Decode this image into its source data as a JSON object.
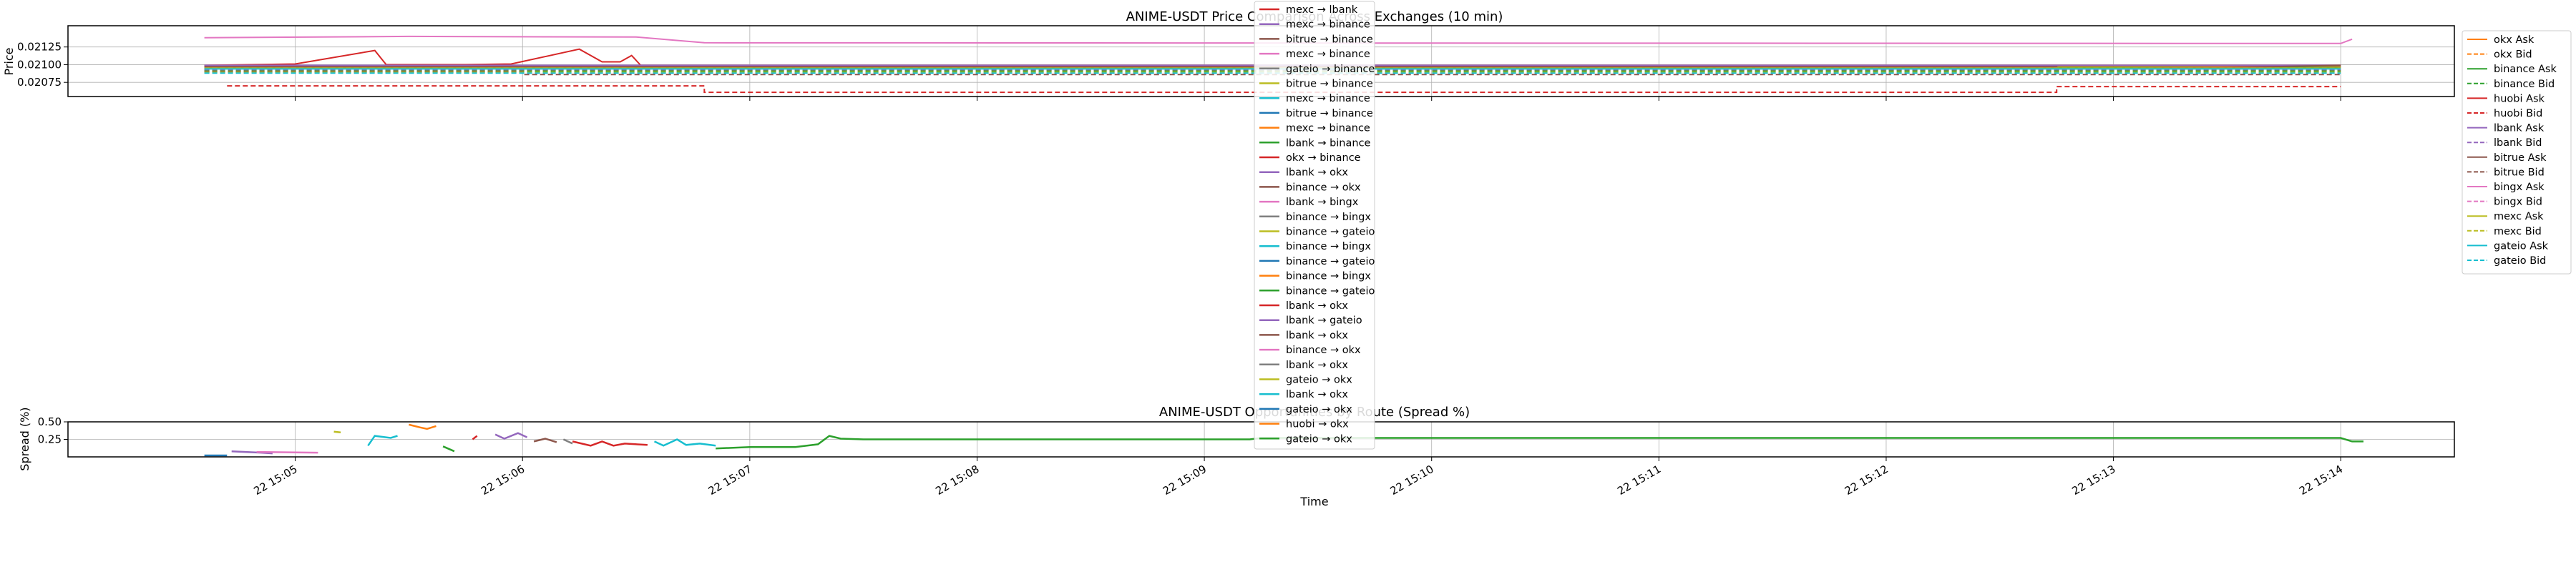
{
  "chart_data": [
    {
      "type": "line",
      "title": "ANIME-USDT Price Comparison Across Exchanges (10 min)",
      "ylabel": "Price",
      "ylim": [
        0.02055,
        0.02155
      ],
      "yticks": [
        "0.02075",
        "0.02100",
        "0.02125"
      ],
      "grid": true,
      "legend_placement": "right",
      "colors": {
        "okx": "#ff7f0e",
        "binance": "#2ca02c",
        "huobi": "#d62728",
        "lbank": "#9467bd",
        "bitrue": "#8c564b",
        "bingx": "#e377c2",
        "mexc": "#bcbd22",
        "gateio": "#17becf"
      },
      "series": [
        {
          "name": "okx Ask",
          "exchange": "okx",
          "style": "solid",
          "points": [
            [
              0.6,
              0.02098
            ],
            [
              10.0,
              0.02098
            ]
          ]
        },
        {
          "name": "okx Bid",
          "exchange": "okx",
          "style": "dashed",
          "points": [
            [
              0.6,
              0.02092
            ],
            [
              10.0,
              0.02092
            ]
          ]
        },
        {
          "name": "binance Ask",
          "exchange": "binance",
          "style": "solid",
          "points": [
            [
              0.6,
              0.02096
            ],
            [
              10.0,
              0.02096
            ]
          ]
        },
        {
          "name": "binance Bid",
          "exchange": "binance",
          "style": "dashed",
          "points": [
            [
              0.6,
              0.02091
            ],
            [
              10.0,
              0.02091
            ]
          ]
        },
        {
          "name": "huobi Ask",
          "exchange": "huobi",
          "style": "solid",
          "points": [
            [
              0.6,
              0.02099
            ],
            [
              1.0,
              0.02101
            ],
            [
              1.35,
              0.0212
            ],
            [
              1.4,
              0.021
            ],
            [
              1.75,
              0.021
            ],
            [
              1.95,
              0.02101
            ],
            [
              2.25,
              0.02122
            ],
            [
              2.35,
              0.02104
            ],
            [
              2.43,
              0.02104
            ],
            [
              2.48,
              0.02113
            ],
            [
              2.52,
              0.02099
            ],
            [
              10.0,
              0.02099
            ]
          ]
        },
        {
          "name": "huobi Bid",
          "exchange": "huobi",
          "style": "dashed",
          "points": [
            [
              0.7,
              0.0207
            ],
            [
              2.8,
              0.0207
            ],
            [
              2.8,
              0.02061
            ],
            [
              8.75,
              0.02061
            ],
            [
              8.75,
              0.02069
            ],
            [
              10.0,
              0.02069
            ]
          ]
        },
        {
          "name": "lbank Ask",
          "exchange": "lbank",
          "style": "solid",
          "points": [
            [
              0.6,
              0.02099
            ],
            [
              10.0,
              0.02099
            ]
          ]
        },
        {
          "name": "lbank Bid",
          "exchange": "lbank",
          "style": "dashed",
          "points": [
            [
              0.6,
              0.02093
            ],
            [
              10.0,
              0.02093
            ]
          ]
        },
        {
          "name": "bitrue Ask",
          "exchange": "bitrue",
          "style": "solid",
          "points": [
            [
              0.6,
              0.02097
            ],
            [
              8.75,
              0.02097
            ],
            [
              8.75,
              0.02094
            ],
            [
              9.5,
              0.02096
            ],
            [
              10.0,
              0.02099
            ]
          ]
        },
        {
          "name": "bitrue Bid",
          "exchange": "bitrue",
          "style": "dashed",
          "points": [
            [
              0.6,
              0.0209
            ],
            [
              2.0,
              0.0209
            ],
            [
              2.0,
              0.02086
            ],
            [
              10.0,
              0.02086
            ]
          ]
        },
        {
          "name": "bingx Ask",
          "exchange": "bingx",
          "style": "solid",
          "points": [
            [
              0.6,
              0.02138
            ],
            [
              1.5,
              0.0214
            ],
            [
              2.5,
              0.02139
            ],
            [
              2.8,
              0.02131
            ],
            [
              10.0,
              0.0213
            ],
            [
              10.05,
              0.02136
            ]
          ]
        },
        {
          "name": "bingx Bid",
          "exchange": "bingx",
          "style": "dashed",
          "points": [
            [
              0.6,
              0.02095
            ],
            [
              10.0,
              0.02095
            ]
          ]
        },
        {
          "name": "mexc Ask",
          "exchange": "mexc",
          "style": "solid",
          "points": [
            [
              0.6,
              0.02095
            ],
            [
              10.0,
              0.02095
            ]
          ]
        },
        {
          "name": "mexc Bid",
          "exchange": "mexc",
          "style": "dashed",
          "points": [
            [
              0.6,
              0.02089
            ],
            [
              10.0,
              0.02089
            ]
          ]
        },
        {
          "name": "gateio Ask",
          "exchange": "gateio",
          "style": "solid",
          "points": [
            [
              0.6,
              0.02094
            ],
            [
              10.0,
              0.02094
            ]
          ]
        },
        {
          "name": "gateio Bid",
          "exchange": "gateio",
          "style": "dashed",
          "points": [
            [
              0.6,
              0.02088
            ],
            [
              10.0,
              0.02088
            ]
          ]
        }
      ]
    },
    {
      "type": "line",
      "title": "ANIME-USDT Opportunities by Route (Spread %)",
      "xlabel": "Time",
      "ylabel": "Spread (%)",
      "ylim": [
        0.0,
        0.5
      ],
      "yticks": [
        "0.25",
        "0.50"
      ],
      "xlim": [
        0.0,
        10.5
      ],
      "xtick_values": [
        1,
        2,
        3,
        4,
        5,
        6,
        7,
        8,
        9,
        10
      ],
      "xticks": [
        "22 15:05",
        "22 15:06",
        "22 15:07",
        "22 15:08",
        "22 15:09",
        "22 15:10",
        "22 15:11",
        "22 15:12",
        "22 15:13",
        "22 15:14"
      ],
      "grid": true,
      "legend_placement": "upper-center",
      "legend": [
        {
          "label": "mexc → lbank",
          "color": "#d62728"
        },
        {
          "label": "mexc → binance",
          "color": "#9467bd"
        },
        {
          "label": "bitrue → binance",
          "color": "#8c564b"
        },
        {
          "label": "mexc → binance",
          "color": "#e377c2"
        },
        {
          "label": "gateio → binance",
          "color": "#7f7f7f"
        },
        {
          "label": "bitrue → binance",
          "color": "#bcbd22"
        },
        {
          "label": "mexc → binance",
          "color": "#17becf"
        },
        {
          "label": "bitrue → binance",
          "color": "#1f77b4"
        },
        {
          "label": "mexc → binance",
          "color": "#ff7f0e"
        },
        {
          "label": "lbank → binance",
          "color": "#2ca02c"
        },
        {
          "label": "okx → binance",
          "color": "#d62728"
        },
        {
          "label": "lbank → okx",
          "color": "#9467bd"
        },
        {
          "label": "binance → okx",
          "color": "#8c564b"
        },
        {
          "label": "lbank → bingx",
          "color": "#e377c2"
        },
        {
          "label": "binance → bingx",
          "color": "#7f7f7f"
        },
        {
          "label": "binance → gateio",
          "color": "#bcbd22"
        },
        {
          "label": "binance → bingx",
          "color": "#17becf"
        },
        {
          "label": "binance → gateio",
          "color": "#1f77b4"
        },
        {
          "label": "binance → bingx",
          "color": "#ff7f0e"
        },
        {
          "label": "binance → gateio",
          "color": "#2ca02c"
        },
        {
          "label": "lbank → okx",
          "color": "#d62728"
        },
        {
          "label": "lbank → gateio",
          "color": "#9467bd"
        },
        {
          "label": "lbank → okx",
          "color": "#8c564b"
        },
        {
          "label": "binance → okx",
          "color": "#e377c2"
        },
        {
          "label": "lbank → okx",
          "color": "#7f7f7f"
        },
        {
          "label": "gateio → okx",
          "color": "#bcbd22"
        },
        {
          "label": "lbank → okx",
          "color": "#17becf"
        },
        {
          "label": "gateio → okx",
          "color": "#1f77b4"
        },
        {
          "label": "huobi → okx",
          "color": "#ff7f0e"
        },
        {
          "label": "gateio → okx",
          "color": "#2ca02c"
        }
      ],
      "segments": [
        {
          "color": "#1f77b4",
          "points": [
            [
              0.6,
              0.02
            ],
            [
              0.7,
              0.02
            ]
          ]
        },
        {
          "color": "#9467bd",
          "points": [
            [
              0.72,
              0.08
            ],
            [
              0.85,
              0.06
            ],
            [
              0.9,
              0.05
            ]
          ]
        },
        {
          "color": "#e377c2",
          "points": [
            [
              0.83,
              0.07
            ],
            [
              1.1,
              0.06
            ]
          ]
        },
        {
          "color": "#bcbd22",
          "points": [
            [
              1.17,
              0.36
            ],
            [
              1.2,
              0.35
            ]
          ]
        },
        {
          "color": "#17becf",
          "points": [
            [
              1.32,
              0.16
            ],
            [
              1.35,
              0.3
            ],
            [
              1.42,
              0.27
            ],
            [
              1.45,
              0.3
            ]
          ]
        },
        {
          "color": "#ff7f0e",
          "points": [
            [
              1.5,
              0.46
            ],
            [
              1.55,
              0.42
            ],
            [
              1.58,
              0.4
            ],
            [
              1.62,
              0.44
            ]
          ]
        },
        {
          "color": "#2ca02c",
          "points": [
            [
              1.65,
              0.15
            ],
            [
              1.7,
              0.08
            ]
          ]
        },
        {
          "color": "#d62728",
          "points": [
            [
              1.78,
              0.25
            ],
            [
              1.8,
              0.3
            ]
          ]
        },
        {
          "color": "#9467bd",
          "points": [
            [
              1.88,
              0.32
            ],
            [
              1.92,
              0.26
            ],
            [
              1.98,
              0.34
            ],
            [
              2.02,
              0.28
            ]
          ]
        },
        {
          "color": "#8c564b",
          "points": [
            [
              2.05,
              0.22
            ],
            [
              2.1,
              0.26
            ],
            [
              2.15,
              0.21
            ]
          ]
        },
        {
          "color": "#7f7f7f",
          "points": [
            [
              2.18,
              0.25
            ],
            [
              2.22,
              0.19
            ]
          ]
        },
        {
          "color": "#d62728",
          "points": [
            [
              2.22,
              0.22
            ],
            [
              2.3,
              0.16
            ],
            [
              2.35,
              0.22
            ],
            [
              2.4,
              0.16
            ],
            [
              2.45,
              0.19
            ],
            [
              2.55,
              0.17
            ]
          ]
        },
        {
          "color": "#17becf",
          "points": [
            [
              2.58,
              0.22
            ],
            [
              2.62,
              0.16
            ],
            [
              2.68,
              0.25
            ],
            [
              2.72,
              0.17
            ],
            [
              2.78,
              0.19
            ],
            [
              2.85,
              0.16
            ]
          ]
        },
        {
          "color": "#2ca02c",
          "points": [
            [
              2.85,
              0.12
            ],
            [
              3.0,
              0.14
            ],
            [
              3.2,
              0.14
            ],
            [
              3.3,
              0.18
            ],
            [
              3.35,
              0.3
            ],
            [
              3.4,
              0.26
            ],
            [
              3.5,
              0.25
            ],
            [
              5.2,
              0.25
            ],
            [
              5.25,
              0.27
            ],
            [
              10.0,
              0.27
            ],
            [
              10.05,
              0.22
            ],
            [
              10.1,
              0.22
            ]
          ]
        }
      ]
    }
  ]
}
